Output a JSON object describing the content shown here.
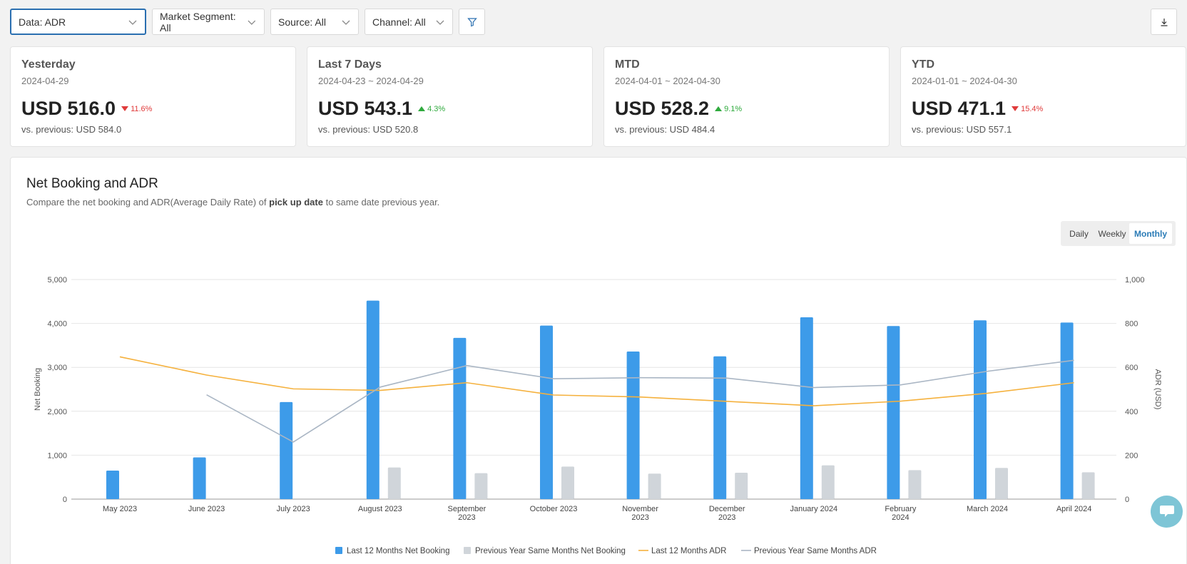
{
  "filters": {
    "data": "Data: ADR",
    "market_segment": "Market Segment: All",
    "source": "Source: All",
    "channel": "Channel: All"
  },
  "kpis": [
    {
      "title": "Yesterday",
      "range": "2024-04-29",
      "value": "USD 516.0",
      "change": "11.6%",
      "direction": "down",
      "prev": "vs. previous: USD 584.0"
    },
    {
      "title": "Last 7 Days",
      "range": "2024-04-23 ~ 2024-04-29",
      "value": "USD 543.1",
      "change": "4.3%",
      "direction": "up",
      "prev": "vs. previous: USD 520.8"
    },
    {
      "title": "MTD",
      "range": "2024-04-01 ~ 2024-04-30",
      "value": "USD 528.2",
      "change": "9.1%",
      "direction": "up",
      "prev": "vs. previous: USD 484.4"
    },
    {
      "title": "YTD",
      "range": "2024-01-01 ~ 2024-04-30",
      "value": "USD 471.1",
      "change": "15.4%",
      "direction": "down",
      "prev": "vs. previous: USD 557.1"
    }
  ],
  "panel": {
    "title": "Net Booking and ADR",
    "subtitle_pre": "Compare the net booking and ADR(Average Daily Rate) of ",
    "subtitle_bold": "pick up date",
    "subtitle_post": " to same date previous year.",
    "granularity": [
      "Daily",
      "Weekly",
      "Monthly"
    ],
    "granularity_selected": "Monthly"
  },
  "colors": {
    "bar_current": "#3d9be9",
    "bar_prev": "#d0d5da",
    "line_current": "#f5b13d",
    "line_prev": "#aab6c4"
  },
  "chart_data": {
    "type": "bar",
    "categories": [
      "May 2023",
      "June 2023",
      "July 2023",
      "August 2023",
      "September 2023",
      "October 2023",
      "November 2023",
      "December 2023",
      "January 2024",
      "February 2024",
      "March 2024",
      "April 2024"
    ],
    "ylabel": "Net Booking",
    "y2label": "ADR (USD)",
    "ylim": [
      0,
      5000
    ],
    "y2lim": [
      0,
      1000
    ],
    "yticks": [
      "0",
      "1,000",
      "2,000",
      "3,000",
      "4,000",
      "5,000"
    ],
    "y2ticks": [
      "0",
      "200",
      "400",
      "600",
      "800",
      "1,000"
    ],
    "grid": true,
    "legend": "bottom",
    "series": [
      {
        "name": "Last 12 Months Net Booking",
        "type": "bar",
        "axis": "left",
        "values": [
          650,
          950,
          2210,
          4520,
          3670,
          3950,
          3360,
          3250,
          4140,
          3940,
          4070,
          4020
        ]
      },
      {
        "name": "Previous Year Same Months Net Booking",
        "type": "bar",
        "axis": "left",
        "values": [
          0,
          0,
          0,
          720,
          590,
          740,
          580,
          600,
          770,
          660,
          710,
          610
        ]
      },
      {
        "name": "Last 12 Months ADR",
        "type": "line",
        "axis": "right",
        "values": [
          648,
          565,
          502,
          495,
          530,
          474,
          465,
          445,
          425,
          446,
          482,
          530
        ]
      },
      {
        "name": "Previous Year Same Months ADR",
        "type": "line",
        "axis": "right",
        "values": [
          null,
          475,
          260,
          510,
          608,
          548,
          553,
          551,
          508,
          520,
          582,
          632
        ]
      }
    ]
  }
}
